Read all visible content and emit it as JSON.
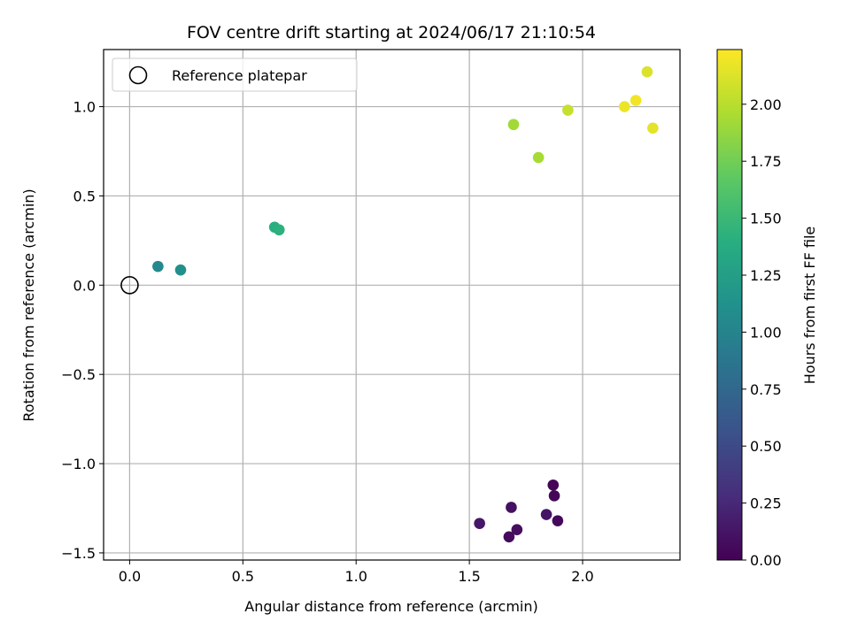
{
  "chart_data": {
    "type": "scatter",
    "title": "FOV centre drift starting at 2024/06/17 21:10:54",
    "xlabel": "Angular distance from reference (arcmin)",
    "ylabel": "Rotation from reference (arcmin)",
    "xlim": [
      -0.115,
      2.43
    ],
    "ylim": [
      -1.54,
      1.32
    ],
    "xticks": [
      0.0,
      0.5,
      1.0,
      1.5,
      2.0
    ],
    "xtick_labels": [
      "0.0",
      "0.5",
      "1.0",
      "1.5",
      "2.0"
    ],
    "yticks": [
      -1.5,
      -1.0,
      -0.5,
      0.0,
      0.5,
      1.0
    ],
    "ytick_labels": [
      "−1.5",
      "−1.0",
      "−0.5",
      "0.0",
      "0.5",
      "1.0"
    ],
    "grid": true,
    "legend": {
      "placement": "top-left",
      "entries": [
        "Reference platepar"
      ]
    },
    "reference_point": {
      "x": 0.0,
      "y": 0.0,
      "marker": "open-circle"
    },
    "colorbar": {
      "label": "Hours from first FF file",
      "colormap": "viridis",
      "range": [
        0.0,
        2.24
      ],
      "ticks": [
        0.0,
        0.25,
        0.5,
        0.75,
        1.0,
        1.25,
        1.5,
        1.75,
        2.0
      ],
      "tick_labels": [
        "0.00",
        "0.25",
        "0.50",
        "0.75",
        "1.00",
        "1.25",
        "1.50",
        "1.75",
        "2.00"
      ]
    },
    "points": [
      {
        "x": 1.87,
        "y": -1.12,
        "hours": 0.02
      },
      {
        "x": 1.875,
        "y": -1.18,
        "hours": 0.03
      },
      {
        "x": 1.89,
        "y": -1.32,
        "hours": 0.05
      },
      {
        "x": 1.675,
        "y": -1.41,
        "hours": 0.06
      },
      {
        "x": 1.71,
        "y": -1.37,
        "hours": 0.08
      },
      {
        "x": 1.685,
        "y": -1.245,
        "hours": 0.1
      },
      {
        "x": 1.84,
        "y": -1.285,
        "hours": 0.12
      },
      {
        "x": 1.545,
        "y": -1.335,
        "hours": 0.14
      },
      {
        "x": 0.125,
        "y": 0.105,
        "hours": 1.05
      },
      {
        "x": 0.225,
        "y": 0.085,
        "hours": 1.1
      },
      {
        "x": 0.64,
        "y": 0.325,
        "hours": 1.4
      },
      {
        "x": 0.66,
        "y": 0.31,
        "hours": 1.42
      },
      {
        "x": 1.695,
        "y": 0.9,
        "hours": 1.92
      },
      {
        "x": 1.805,
        "y": 0.715,
        "hours": 1.94
      },
      {
        "x": 1.935,
        "y": 0.98,
        "hours": 2.05
      },
      {
        "x": 2.185,
        "y": 1.0,
        "hours": 2.18
      },
      {
        "x": 2.235,
        "y": 1.035,
        "hours": 2.2
      },
      {
        "x": 2.285,
        "y": 1.195,
        "hours": 2.12
      },
      {
        "x": 2.31,
        "y": 0.88,
        "hours": 2.15
      }
    ]
  }
}
